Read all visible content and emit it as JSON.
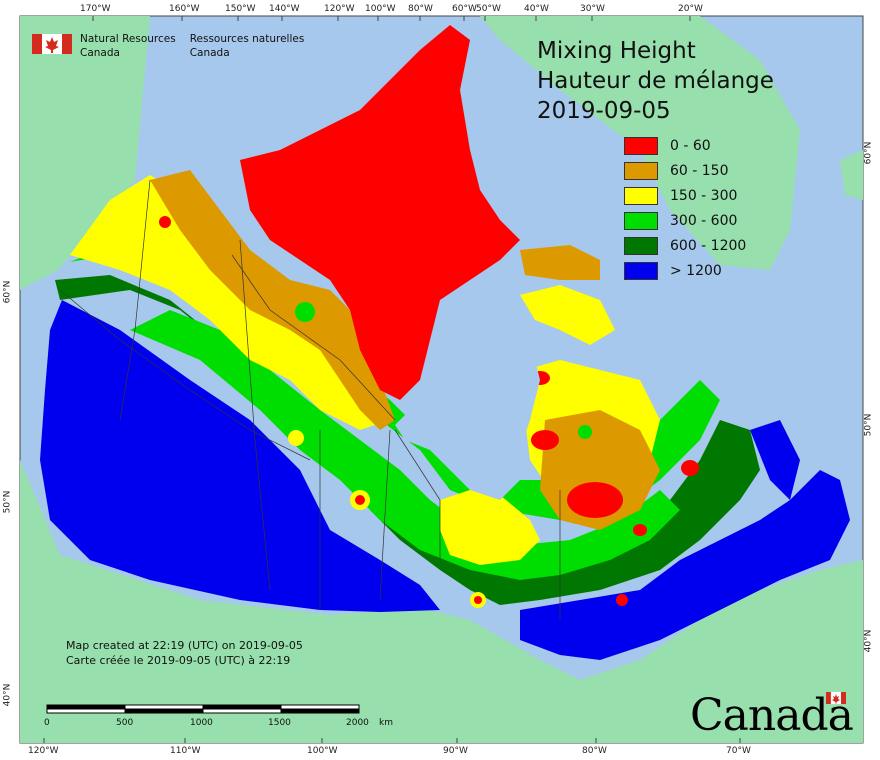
{
  "agency": {
    "name_en_line1": "Natural Resources",
    "name_en_line2": "Canada",
    "name_fr_line1": "Ressources naturelles",
    "name_fr_line2": "Canada"
  },
  "title": {
    "line_en": "Mixing Height",
    "line_fr": "Hauteur de mélange",
    "date": "2019-09-05"
  },
  "legend": [
    {
      "label": "0 - 60",
      "color": "#ff0000"
    },
    {
      "label": "60 - 150",
      "color": "#dd9900"
    },
    {
      "label": "150 - 300",
      "color": "#ffff00"
    },
    {
      "label": "300 - 600",
      "color": "#00dd00"
    },
    {
      "label": "600 - 1200",
      "color": "#007700"
    },
    {
      "label": "> 1200",
      "color": "#0000ee"
    }
  ],
  "colors": {
    "ocean": "#a6c8ec",
    "land_other": "#97e0ad",
    "boundary": "#333333"
  },
  "note": {
    "line_en": "Map created at 22:19 (UTC) on 2019-09-05",
    "line_fr": "Carte créée le 2019-09-05 (UTC) à 22:19"
  },
  "scale": {
    "labels": [
      "0",
      "500",
      "1000",
      "1500",
      "2000"
    ],
    "unit": "km"
  },
  "axes": {
    "top": [
      "170°W",
      "160°W",
      "150°W",
      "140°W",
      "120°W",
      "100°W",
      "80°W",
      "60°W",
      "50°W",
      "40°W",
      "30°W",
      "20°W"
    ],
    "bottom": [
      "120°W",
      "110°W",
      "100°W",
      "90°W",
      "80°W",
      "70°W"
    ],
    "left": [
      "60°N",
      "50°N",
      "40°N"
    ],
    "right": [
      "60°N",
      "50°N",
      "40°N"
    ]
  },
  "wordmark": "Canada"
}
